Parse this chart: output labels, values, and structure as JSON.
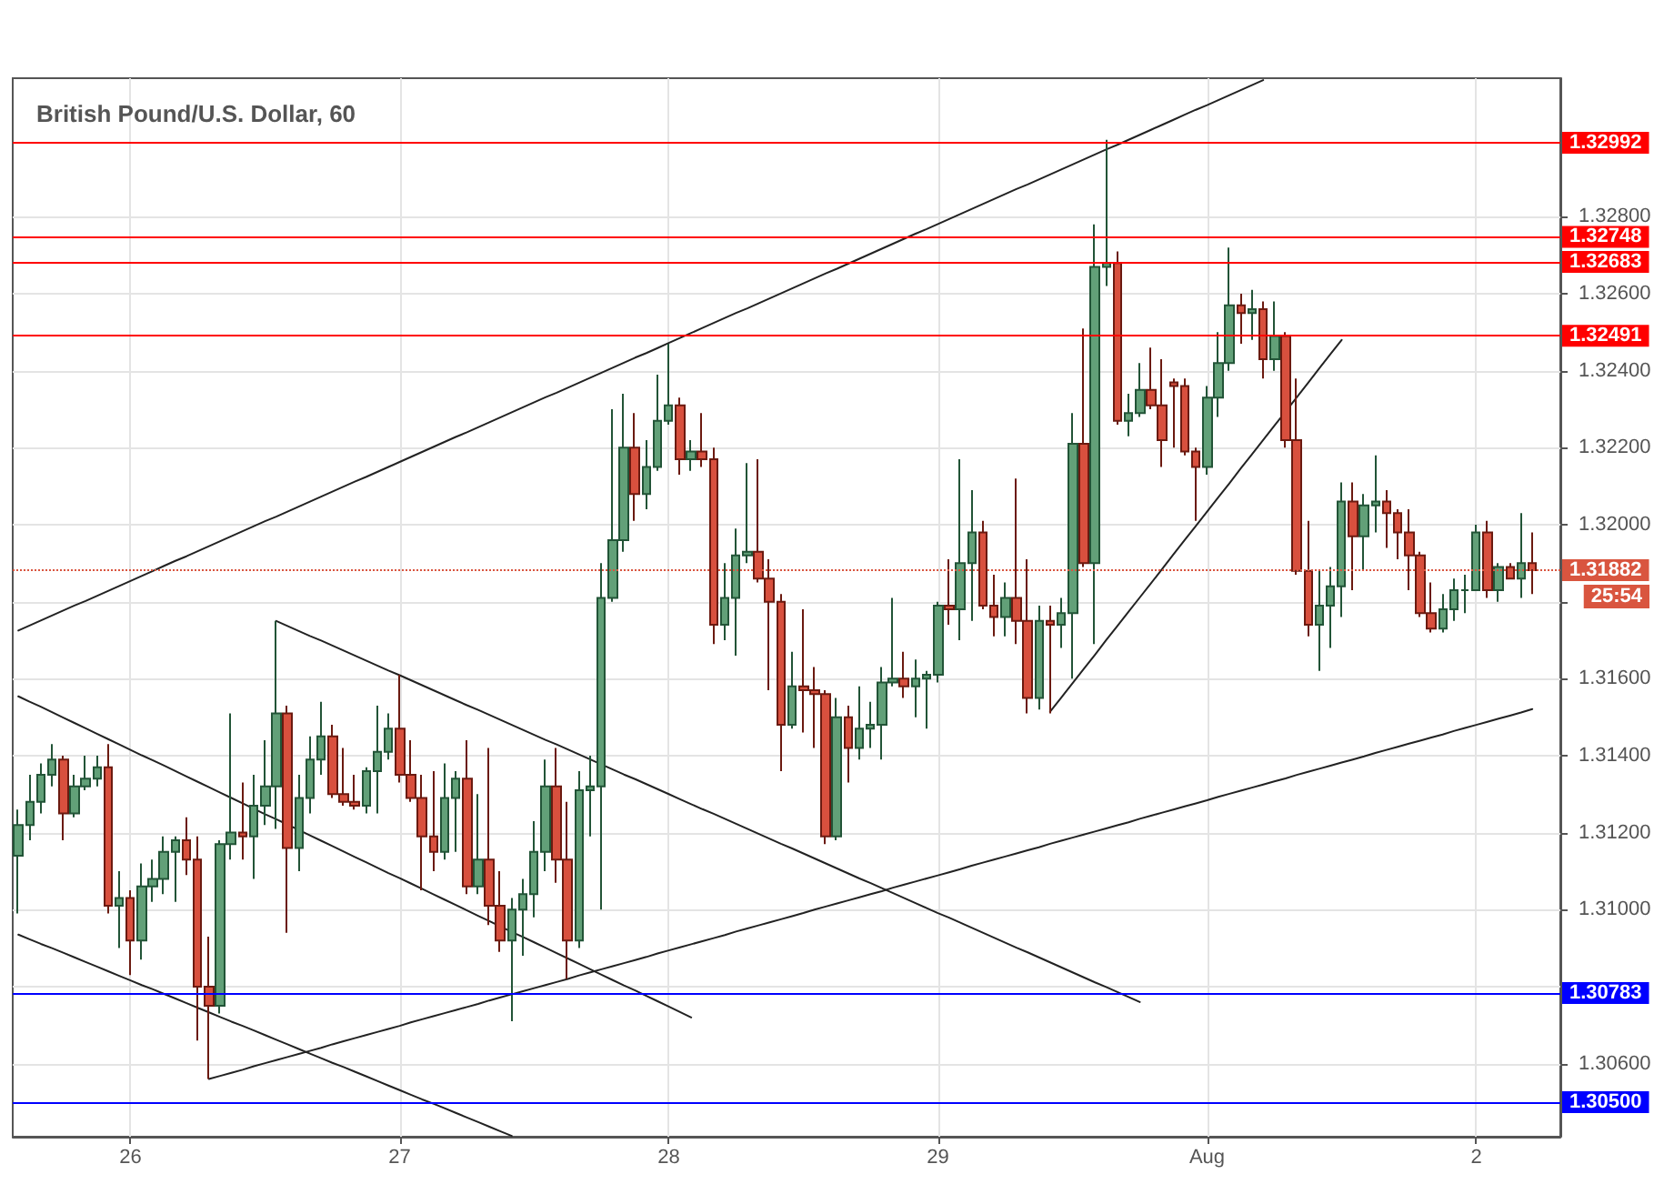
{
  "chart_data": {
    "type": "candlestick",
    "title": "British Pound/U.S. Dollar, 60",
    "categories": [
      null,
      null,
      null,
      null,
      null,
      null,
      null,
      null,
      null,
      null,
      "26",
      null,
      null,
      null,
      null,
      null,
      null,
      null,
      null,
      null,
      null,
      null,
      null,
      null,
      null,
      null,
      null,
      null,
      null,
      null,
      null,
      null,
      null,
      null,
      "27",
      null,
      null,
      null,
      null,
      null,
      null,
      null,
      null,
      null,
      null,
      null,
      null,
      null,
      null,
      null,
      null,
      null,
      null,
      null,
      null,
      null,
      null,
      null,
      "28",
      null,
      null,
      null,
      null,
      null,
      null,
      null,
      null,
      null,
      null,
      null,
      null,
      null,
      null,
      null,
      null,
      null,
      null,
      null,
      null,
      null,
      null,
      null,
      "29",
      null,
      null,
      null,
      null,
      null,
      null,
      null,
      null,
      null,
      null,
      null,
      null,
      null,
      null,
      null,
      null,
      null,
      null,
      null,
      null,
      null,
      null,
      null,
      "Aug",
      null,
      null,
      null,
      null,
      null,
      null,
      null,
      null,
      null,
      null,
      null,
      null,
      null,
      null,
      null,
      null,
      null,
      null,
      null,
      null,
      null,
      null,
      null,
      "2",
      null,
      null,
      null,
      null,
      null
    ],
    "ylim": [
      1.3041,
      1.3316
    ],
    "yticks": [
      {
        "value": 1.306,
        "label": "1.30600"
      },
      {
        "value": 1.308,
        "label": null
      },
      {
        "value": 1.31,
        "label": "1.31000"
      },
      {
        "value": 1.312,
        "label": "1.31200"
      },
      {
        "value": 1.314,
        "label": "1.31400"
      },
      {
        "value": 1.316,
        "label": "1.31600"
      },
      {
        "value": 1.318,
        "label": null
      },
      {
        "value": 1.32,
        "label": "1.32000"
      },
      {
        "value": 1.322,
        "label": "1.32200"
      },
      {
        "value": 1.324,
        "label": "1.32400"
      },
      {
        "value": 1.326,
        "label": "1.32600"
      },
      {
        "value": 1.328,
        "label": "1.32800"
      }
    ],
    "grid": true,
    "series": [
      {
        "ohlc": [
          [
            1.3114,
            1.3126,
            1.3099,
            1.3122
          ],
          [
            1.3122,
            1.3135,
            1.3118,
            1.3128
          ],
          [
            1.3128,
            1.3138,
            1.3125,
            1.3135
          ],
          [
            1.3135,
            1.3143,
            1.3132,
            1.3139
          ],
          [
            1.3139,
            1.314,
            1.3118,
            1.3125
          ],
          [
            1.3125,
            1.3135,
            1.3124,
            1.3132
          ],
          [
            1.3132,
            1.314,
            1.3131,
            1.3134
          ],
          [
            1.3134,
            1.314,
            1.3132,
            1.3137
          ],
          [
            1.3137,
            1.3143,
            1.3099,
            1.3101
          ],
          [
            1.3101,
            1.311,
            1.309,
            1.3103
          ],
          [
            1.3103,
            1.3105,
            1.3083,
            1.3092
          ],
          [
            1.3092,
            1.3112,
            1.3087,
            1.3106
          ],
          [
            1.3106,
            1.3113,
            1.3102,
            1.3108
          ],
          [
            1.3108,
            1.3119,
            1.3104,
            1.3115
          ],
          [
            1.3115,
            1.3119,
            1.3102,
            1.3118
          ],
          [
            1.3118,
            1.3124,
            1.3109,
            1.3113
          ],
          [
            1.3113,
            1.3119,
            1.3066,
            1.308
          ],
          [
            1.308,
            1.3093,
            1.3056,
            1.3075
          ],
          [
            1.3075,
            1.3118,
            1.3073,
            1.3117
          ],
          [
            1.3117,
            1.3151,
            1.3113,
            1.312
          ],
          [
            1.312,
            1.3133,
            1.3113,
            1.3119
          ],
          [
            1.3119,
            1.3135,
            1.3108,
            1.3127
          ],
          [
            1.3127,
            1.3144,
            1.3122,
            1.3132
          ],
          [
            1.3132,
            1.3175,
            1.3121,
            1.3151
          ],
          [
            1.3151,
            1.3153,
            1.3094,
            1.3116
          ],
          [
            1.3116,
            1.3135,
            1.311,
            1.3129
          ],
          [
            1.3129,
            1.3145,
            1.3125,
            1.3139
          ],
          [
            1.3139,
            1.3154,
            1.3135,
            1.3145
          ],
          [
            1.3145,
            1.3148,
            1.3129,
            1.313
          ],
          [
            1.313,
            1.3142,
            1.3127,
            1.3128
          ],
          [
            1.3128,
            1.3135,
            1.3126,
            1.3127
          ],
          [
            1.3127,
            1.3137,
            1.3125,
            1.3136
          ],
          [
            1.3136,
            1.3153,
            1.3125,
            1.3141
          ],
          [
            1.3141,
            1.3151,
            1.3139,
            1.3147
          ],
          [
            1.3147,
            1.3161,
            1.3133,
            1.3135
          ],
          [
            1.3135,
            1.3144,
            1.3128,
            1.3129
          ],
          [
            1.3129,
            1.3135,
            1.3105,
            1.3119
          ],
          [
            1.3119,
            1.3136,
            1.311,
            1.3115
          ],
          [
            1.3115,
            1.3138,
            1.3113,
            1.3129
          ],
          [
            1.3129,
            1.3136,
            1.3115,
            1.3134
          ],
          [
            1.3134,
            1.3144,
            1.3104,
            1.3106
          ],
          [
            1.3106,
            1.313,
            1.3104,
            1.3113
          ],
          [
            1.3113,
            1.3142,
            1.3096,
            1.3101
          ],
          [
            1.3101,
            1.311,
            1.3089,
            1.3092
          ],
          [
            1.3092,
            1.3103,
            1.3071,
            1.31
          ],
          [
            1.31,
            1.3108,
            1.3088,
            1.3104
          ],
          [
            1.3104,
            1.3123,
            1.3098,
            1.3115
          ],
          [
            1.3115,
            1.3139,
            1.311,
            1.3132
          ],
          [
            1.3132,
            1.3142,
            1.3107,
            1.3113
          ],
          [
            1.3113,
            1.3128,
            1.3082,
            1.3092
          ],
          [
            1.3092,
            1.3136,
            1.309,
            1.3131
          ],
          [
            1.3131,
            1.314,
            1.3119,
            1.3132
          ],
          [
            1.3132,
            1.319,
            1.31,
            1.3181
          ],
          [
            1.3181,
            1.323,
            1.318,
            1.3196
          ],
          [
            1.3196,
            1.3234,
            1.3193,
            1.322
          ],
          [
            1.322,
            1.3229,
            1.3201,
            1.3208
          ],
          [
            1.3208,
            1.3222,
            1.3204,
            1.3215
          ],
          [
            1.3215,
            1.3239,
            1.3214,
            1.3227
          ],
          [
            1.3227,
            1.3247,
            1.3226,
            1.3231
          ],
          [
            1.3231,
            1.3233,
            1.3213,
            1.3217
          ],
          [
            1.3217,
            1.3222,
            1.3214,
            1.3219
          ],
          [
            1.3219,
            1.3229,
            1.3215,
            1.3217
          ],
          [
            1.3217,
            1.322,
            1.3169,
            1.3174
          ],
          [
            1.3174,
            1.319,
            1.317,
            1.3181
          ],
          [
            1.3181,
            1.3199,
            1.3166,
            1.3192
          ],
          [
            1.3192,
            1.3216,
            1.319,
            1.3193
          ],
          [
            1.3193,
            1.3217,
            1.3185,
            1.3186
          ],
          [
            1.3186,
            1.3191,
            1.3157,
            1.318
          ],
          [
            1.318,
            1.3182,
            1.3136,
            1.3148
          ],
          [
            1.3148,
            1.3167,
            1.3147,
            1.3158
          ],
          [
            1.3158,
            1.3178,
            1.3146,
            1.3157
          ],
          [
            1.3157,
            1.3163,
            1.3142,
            1.3156
          ],
          [
            1.3156,
            1.3157,
            1.3117,
            1.3119
          ],
          [
            1.3119,
            1.3155,
            1.3118,
            1.315
          ],
          [
            1.315,
            1.3153,
            1.3133,
            1.3142
          ],
          [
            1.3142,
            1.3158,
            1.3139,
            1.3147
          ],
          [
            1.3147,
            1.3154,
            1.3142,
            1.3148
          ],
          [
            1.3148,
            1.3163,
            1.3139,
            1.3159
          ],
          [
            1.3159,
            1.3181,
            1.3158,
            1.316
          ],
          [
            1.316,
            1.3167,
            1.3155,
            1.3158
          ],
          [
            1.3158,
            1.3165,
            1.315,
            1.316
          ],
          [
            1.316,
            1.3162,
            1.3147,
            1.3161
          ],
          [
            1.3161,
            1.318,
            1.3159,
            1.3179
          ],
          [
            1.3179,
            1.3191,
            1.3174,
            1.3178
          ],
          [
            1.3178,
            1.3217,
            1.317,
            1.319
          ],
          [
            1.319,
            1.3209,
            1.3175,
            1.3198
          ],
          [
            1.3198,
            1.3201,
            1.3178,
            1.3179
          ],
          [
            1.3179,
            1.3187,
            1.3171,
            1.3176
          ],
          [
            1.3176,
            1.3185,
            1.3171,
            1.3181
          ],
          [
            1.3181,
            1.3212,
            1.3169,
            1.3175
          ],
          [
            1.3175,
            1.3191,
            1.3151,
            1.3155
          ],
          [
            1.3155,
            1.3179,
            1.3152,
            1.3175
          ],
          [
            1.3175,
            1.3179,
            1.3151,
            1.3174
          ],
          [
            1.3174,
            1.3181,
            1.3168,
            1.3177
          ],
          [
            1.3177,
            1.3229,
            1.316,
            1.3221
          ],
          [
            1.3221,
            1.3251,
            1.3189,
            1.319
          ],
          [
            1.319,
            1.3278,
            1.3169,
            1.3267
          ],
          [
            1.3267,
            1.33,
            1.3262,
            1.3268
          ],
          [
            1.3268,
            1.3271,
            1.3226,
            1.3227
          ],
          [
            1.3227,
            1.3234,
            1.3223,
            1.3229
          ],
          [
            1.3229,
            1.3242,
            1.3228,
            1.3235
          ],
          [
            1.3235,
            1.3246,
            1.323,
            1.3231
          ],
          [
            1.3231,
            1.3243,
            1.3215,
            1.3222
          ],
          [
            1.3237,
            1.3238,
            1.322,
            1.3236
          ],
          [
            1.3236,
            1.3238,
            1.3218,
            1.3219
          ],
          [
            1.3219,
            1.322,
            1.3201,
            1.3215
          ],
          [
            1.3215,
            1.3236,
            1.3213,
            1.3233
          ],
          [
            1.3233,
            1.325,
            1.3228,
            1.3242
          ],
          [
            1.3242,
            1.3272,
            1.324,
            1.3257
          ],
          [
            1.3257,
            1.326,
            1.3247,
            1.3255
          ],
          [
            1.3255,
            1.3261,
            1.3248,
            1.3256
          ],
          [
            1.3256,
            1.3258,
            1.3238,
            1.3243
          ],
          [
            1.3243,
            1.3258,
            1.324,
            1.3249
          ],
          [
            1.3249,
            1.325,
            1.322,
            1.3222
          ],
          [
            1.3222,
            1.3238,
            1.3187,
            1.3188
          ],
          [
            1.3188,
            1.3201,
            1.3171,
            1.3174
          ],
          [
            1.3174,
            1.3188,
            1.3162,
            1.3179
          ],
          [
            1.3179,
            1.3189,
            1.3168,
            1.3184
          ],
          [
            1.3184,
            1.3211,
            1.3176,
            1.3206
          ],
          [
            1.3206,
            1.3211,
            1.3183,
            1.3197
          ],
          [
            1.3197,
            1.3208,
            1.3188,
            1.3205
          ],
          [
            1.3205,
            1.3218,
            1.3198,
            1.3206
          ],
          [
            1.3206,
            1.3209,
            1.3194,
            1.3203
          ],
          [
            1.3203,
            1.3204,
            1.3191,
            1.3198
          ],
          [
            1.3198,
            1.3204,
            1.3183,
            1.3192
          ],
          [
            1.3192,
            1.3193,
            1.3176,
            1.3177
          ],
          [
            1.3177,
            1.3185,
            1.3172,
            1.3173
          ],
          [
            1.3173,
            1.3182,
            1.3172,
            1.3178
          ],
          [
            1.3178,
            1.3186,
            1.3175,
            1.3183
          ],
          [
            1.3183,
            1.3187,
            1.3177,
            1.3183
          ],
          [
            1.3183,
            1.32,
            1.3183,
            1.3198
          ],
          [
            1.3198,
            1.3201,
            1.3181,
            1.3183
          ],
          [
            1.3183,
            1.319,
            1.318,
            1.3189
          ],
          [
            1.3189,
            1.319,
            1.3186,
            1.3186
          ],
          [
            1.3186,
            1.3203,
            1.3181,
            1.319
          ],
          [
            1.319,
            1.3198,
            1.3182,
            1.31882
          ]
        ]
      },
      {
        "type": "line",
        "color": "#222222",
        "values": [
          1.31725,
          1.31738,
          1.31751,
          1.31764,
          1.31777,
          1.3179,
          1.31802,
          1.31815,
          1.31828,
          1.31841,
          1.31854,
          1.31867,
          1.3188,
          1.31893,
          1.31906,
          1.31918,
          1.31931,
          1.31944,
          1.31957,
          1.3197,
          1.31983,
          1.31996,
          1.32009,
          1.32021,
          1.32034,
          1.32047,
          1.3206,
          1.32073,
          1.32086,
          1.32099,
          1.32112,
          1.32124,
          1.32137,
          1.3215,
          1.32163,
          1.32176,
          1.32189,
          1.32202,
          1.32215,
          1.32228,
          1.3224,
          1.32253,
          1.32266,
          1.32279,
          1.32292,
          1.32305,
          1.32318,
          1.32331,
          1.32343,
          1.32356,
          1.32369,
          1.32382,
          1.32395,
          1.32408,
          1.32421,
          1.32434,
          1.32446,
          1.32459,
          1.32472,
          1.32485,
          1.32498,
          1.32511,
          1.32524,
          1.32537,
          1.3255,
          1.32562,
          1.32575,
          1.32588,
          1.32601,
          1.32614,
          1.32627,
          1.3264,
          1.32653,
          1.32665,
          1.32678,
          1.32691,
          1.32704,
          1.32717,
          1.3273,
          1.32743,
          1.32756,
          1.32768,
          1.32781,
          1.32794,
          1.32807,
          1.3282,
          1.32833,
          1.32846,
          1.32859,
          1.32872,
          1.32884,
          1.32897,
          1.3291,
          1.32923,
          1.32936,
          1.32949,
          1.32962,
          1.32975,
          1.32987,
          1.33,
          1.33013,
          1.33026,
          1.33039,
          1.33052,
          1.33065,
          1.33078,
          1.3309,
          1.33103,
          1.33116,
          1.33129,
          1.33142,
          1.33155,
          null,
          null,
          null,
          null,
          null,
          null,
          null,
          null,
          null,
          null,
          null,
          null,
          null,
          null,
          null,
          null,
          null,
          null,
          null,
          null,
          null,
          null,
          null,
          null
        ]
      },
      {
        "type": "line",
        "color": "#222222",
        "values": [
          null,
          null,
          null,
          null,
          null,
          null,
          null,
          null,
          null,
          null,
          null,
          null,
          null,
          null,
          null,
          null,
          null,
          null,
          null,
          null,
          null,
          null,
          null,
          null,
          null,
          null,
          null,
          null,
          null,
          null,
          null,
          null,
          null,
          null,
          null,
          null,
          null,
          null,
          null,
          null,
          null,
          null,
          null,
          null,
          null,
          null,
          null,
          null,
          null,
          null,
          null,
          null,
          null,
          null,
          null,
          null,
          null,
          null,
          null,
          null,
          null,
          null,
          null,
          null,
          null,
          null,
          null,
          null,
          null,
          null,
          null,
          null,
          null,
          null,
          null,
          null,
          null,
          null,
          null,
          null,
          null,
          null,
          null,
          null,
          null,
          null,
          null,
          null,
          null,
          null,
          null,
          null,
          1.31514,
          1.31551,
          1.31588,
          1.31625,
          1.31662,
          1.317,
          1.31737,
          1.31774,
          1.31811,
          1.31848,
          1.31885,
          1.31923,
          1.3196,
          1.31997,
          1.32034,
          1.32071,
          1.32108,
          1.32146,
          1.32183,
          1.3222,
          1.32257,
          1.32294,
          1.32331,
          1.32368,
          1.32406,
          1.32443,
          1.3248,
          null,
          null,
          null,
          null,
          null,
          null,
          null,
          null,
          null,
          null,
          null,
          null,
          null,
          null,
          null,
          null,
          null
        ]
      },
      {
        "type": "line",
        "color": "#222222",
        "values": [
          null,
          null,
          null,
          null,
          null,
          null,
          null,
          null,
          null,
          null,
          null,
          null,
          null,
          null,
          null,
          null,
          null,
          1.3056,
          1.30568,
          1.30576,
          1.30584,
          1.30593,
          1.30601,
          1.30609,
          1.30617,
          1.30625,
          1.30633,
          1.30641,
          1.3065,
          1.30658,
          1.30666,
          1.30674,
          1.30682,
          1.3069,
          1.30698,
          1.30707,
          1.30715,
          1.30723,
          1.30731,
          1.30739,
          1.30747,
          1.30755,
          1.30764,
          1.30772,
          1.3078,
          1.30788,
          1.30796,
          1.30804,
          1.30812,
          1.3082,
          1.30829,
          1.30837,
          1.30845,
          1.30853,
          1.30861,
          1.30869,
          1.30877,
          1.30886,
          1.30894,
          1.30902,
          1.3091,
          1.30918,
          1.30926,
          1.30934,
          1.30943,
          1.30951,
          1.30959,
          1.30967,
          1.30975,
          1.30983,
          1.30991,
          1.31,
          1.31008,
          1.31016,
          1.31024,
          1.31032,
          1.3104,
          1.31048,
          1.31057,
          1.31065,
          1.31073,
          1.31081,
          1.31089,
          1.31097,
          1.31105,
          1.31114,
          1.31122,
          1.3113,
          1.31138,
          1.31146,
          1.31154,
          1.31162,
          1.31171,
          1.31179,
          1.31187,
          1.31195,
          1.31203,
          1.31211,
          1.31219,
          1.31227,
          1.31236,
          1.31244,
          1.31252,
          1.3126,
          1.31268,
          1.31276,
          1.31284,
          1.31293,
          1.31301,
          1.31309,
          1.31317,
          1.31325,
          1.31333,
          1.31341,
          1.3135,
          1.31358,
          1.31366,
          1.31374,
          1.31382,
          1.3139,
          1.31398,
          1.31407,
          1.31415,
          1.31423,
          1.31431,
          1.31439,
          1.31447,
          1.31455,
          1.31464,
          1.31472,
          1.3148,
          1.31488,
          1.31496,
          1.31504,
          1.31512,
          1.31521
        ]
      },
      {
        "type": "line",
        "color": "#222222",
        "values": [
          null,
          null,
          null,
          null,
          null,
          null,
          null,
          null,
          null,
          null,
          null,
          null,
          null,
          null,
          null,
          null,
          null,
          null,
          null,
          null,
          null,
          null,
          null,
          1.3175,
          1.31737,
          1.31724,
          1.31711,
          1.31699,
          1.31686,
          1.31673,
          1.3166,
          1.31647,
          1.31634,
          1.31621,
          1.31609,
          1.31596,
          1.31583,
          1.3157,
          1.31557,
          1.31544,
          1.31531,
          1.31519,
          1.31506,
          1.31493,
          1.3148,
          1.31467,
          1.31454,
          1.31441,
          1.31429,
          1.31416,
          1.31403,
          1.3139,
          1.31377,
          1.31364,
          1.31351,
          1.31339,
          1.31326,
          1.31313,
          1.313,
          1.31287,
          1.31274,
          1.31261,
          1.31249,
          1.31236,
          1.31223,
          1.3121,
          1.31197,
          1.31184,
          1.31171,
          1.31159,
          1.31146,
          1.31133,
          1.3112,
          1.31107,
          1.31094,
          1.31081,
          1.31069,
          1.31056,
          1.31043,
          1.3103,
          1.31017,
          1.31004,
          1.30991,
          1.30979,
          1.30966,
          1.30953,
          1.3094,
          1.30927,
          1.30914,
          1.30901,
          1.30889,
          1.30876,
          1.30863,
          1.3085,
          1.30837,
          1.30824,
          1.30811,
          1.30799,
          1.30786,
          1.30773,
          1.3076,
          null,
          null,
          null,
          null,
          null,
          null,
          null,
          null,
          null,
          null,
          null,
          null,
          null,
          null,
          null,
          null,
          null,
          null,
          null,
          null,
          null,
          null,
          null,
          null,
          null,
          null,
          null,
          null,
          null,
          null,
          null,
          null,
          null,
          null,
          null
        ]
      },
      {
        "type": "line",
        "color": "#222222",
        "values": [
          1.31554,
          1.3154,
          1.31527,
          1.31513,
          1.31499,
          1.31485,
          1.31471,
          1.31457,
          1.31443,
          1.31429,
          1.31415,
          1.31401,
          1.31388,
          1.31374,
          1.3136,
          1.31346,
          1.31332,
          1.31318,
          1.31304,
          1.3129,
          1.31276,
          1.31262,
          1.31248,
          1.31235,
          1.31221,
          1.31207,
          1.31193,
          1.31179,
          1.31165,
          1.31151,
          1.31137,
          1.31123,
          1.31109,
          1.31095,
          1.31082,
          1.31068,
          1.31054,
          1.3104,
          1.31026,
          1.31012,
          1.30998,
          1.30984,
          1.3097,
          1.30956,
          1.30942,
          1.30929,
          1.30915,
          1.30901,
          1.30887,
          1.30873,
          1.30859,
          1.30845,
          1.30831,
          1.30817,
          1.30803,
          1.3079,
          1.30776,
          1.30762,
          1.30748,
          1.30734,
          1.3072,
          null,
          null,
          null,
          null,
          null,
          null,
          null,
          null,
          null,
          null,
          null,
          null,
          null,
          null,
          null,
          null,
          null,
          null,
          null,
          null,
          null,
          null,
          null,
          null,
          null,
          null,
          null,
          null,
          null,
          null,
          null,
          null,
          null,
          null,
          null,
          null,
          null,
          null,
          null,
          null,
          null,
          null,
          null,
          null,
          null,
          null,
          null,
          null,
          null,
          null,
          null,
          null,
          null,
          null,
          null,
          null,
          null,
          null,
          null,
          null,
          null,
          null,
          null,
          null,
          null,
          null,
          null,
          null,
          null,
          null,
          null,
          null,
          null,
          null,
          null
        ]
      },
      {
        "type": "line",
        "color": "#222222",
        "values": [
          1.30935,
          1.30923,
          1.30911,
          1.309,
          1.30888,
          1.30876,
          1.30864,
          1.30852,
          1.3084,
          1.30828,
          1.30816,
          1.30804,
          1.30793,
          1.30781,
          1.30769,
          1.30757,
          1.30745,
          1.30733,
          1.30721,
          1.30709,
          1.30698,
          1.30686,
          1.30674,
          1.30662,
          1.3065,
          1.30638,
          1.30626,
          1.30614,
          1.30602,
          1.30591,
          1.30579,
          1.30567,
          1.30555,
          1.30543,
          1.30531,
          1.30519,
          1.30507,
          1.30496,
          1.30484,
          1.30472,
          1.3046,
          1.30448,
          1.30436,
          1.30424,
          1.30412,
          null,
          null,
          null,
          null,
          null,
          null,
          null,
          null,
          null,
          null,
          null,
          null,
          null,
          null,
          null,
          null,
          null,
          null,
          null,
          null,
          null,
          null,
          null,
          null,
          null,
          null,
          null,
          null,
          null,
          null,
          null,
          null,
          null,
          null,
          null,
          null,
          null,
          null,
          null,
          null,
          null,
          null,
          null,
          null,
          null,
          null,
          null,
          null,
          null,
          null,
          null,
          null,
          null,
          null,
          null,
          null,
          null,
          null,
          null,
          null,
          null,
          null,
          null,
          null,
          null,
          null,
          null,
          null,
          null,
          null,
          null,
          null,
          null,
          null,
          null,
          null,
          null,
          null,
          null,
          null,
          null,
          null,
          null,
          null,
          null,
          null,
          null,
          null,
          null,
          null,
          null
        ]
      }
    ],
    "ref_lines": [
      {
        "axis": "y",
        "value": 1.32992,
        "label": "1.32992",
        "color": "#ff0000"
      },
      {
        "axis": "y",
        "value": 1.32748,
        "label": "1.32748",
        "color": "#ff0000"
      },
      {
        "axis": "y",
        "value": 1.32683,
        "label": "1.32683",
        "color": "#ff0000"
      },
      {
        "axis": "y",
        "value": 1.32491,
        "label": "1.32491",
        "color": "#ff0000"
      },
      {
        "axis": "y",
        "value": 1.30783,
        "label": "1.30783",
        "color": "#0000ff"
      },
      {
        "axis": "y",
        "value": 1.305,
        "label": "1.30500",
        "color": "#0000ff"
      },
      {
        "axis": "y",
        "value": 1.31882,
        "label": "1.31882",
        "color": "#d9553f",
        "line_style": "dotted"
      }
    ],
    "annotations": [
      "25:54"
    ]
  }
}
